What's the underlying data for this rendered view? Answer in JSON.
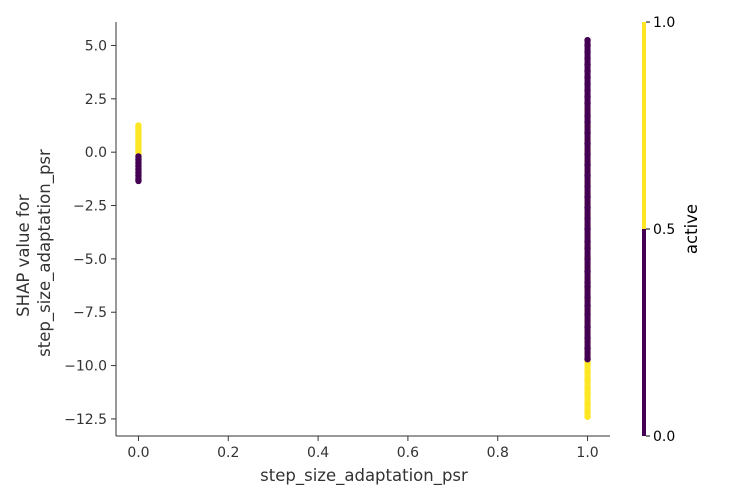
{
  "chart_data": {
    "type": "scatter",
    "title": "",
    "xlabel": "step_size_adaptation_psr",
    "ylabel_lines": [
      "SHAP value for",
      "step_size_adaptation_psr"
    ],
    "xlim": [
      -0.05,
      1.05
    ],
    "ylim": [
      -13.3,
      6.1
    ],
    "x_ticks": [
      0.0,
      0.2,
      0.4,
      0.6,
      0.8,
      1.0
    ],
    "x_tick_labels": [
      "0.0",
      "0.2",
      "0.4",
      "0.6",
      "0.8",
      "1.0"
    ],
    "y_ticks": [
      5.0,
      2.5,
      0.0,
      -2.5,
      -5.0,
      -7.5,
      -10.0,
      -12.5
    ],
    "y_tick_labels": [
      "5.0",
      "2.5",
      "0.0",
      "−2.5",
      "−5.0",
      "−7.5",
      "−10.0",
      "−12.5"
    ],
    "grid": false,
    "colorbar": {
      "label": "active",
      "ticks": [
        0.0,
        0.5,
        1.0
      ],
      "tick_labels": [
        "0.0",
        "0.5",
        "1.0"
      ],
      "split_value": 0.5,
      "color_low": "#440154",
      "color_high": "#fde725"
    },
    "series": [
      {
        "name": "active = 1",
        "color": "#fde725",
        "points": [
          [
            0,
            1.25
          ],
          [
            0,
            1.15
          ],
          [
            0,
            1.05
          ],
          [
            0,
            0.95
          ],
          [
            0,
            0.85
          ],
          [
            0,
            0.75
          ],
          [
            0,
            0.65
          ],
          [
            0,
            0.55
          ],
          [
            0,
            0.45
          ],
          [
            0,
            0.35
          ],
          [
            0,
            0.25
          ],
          [
            0,
            0.15
          ],
          [
            0,
            0.05
          ],
          [
            0,
            -0.05
          ],
          [
            1,
            2.0
          ],
          [
            1,
            1.2
          ],
          [
            1,
            0.6
          ],
          [
            1,
            0.1
          ],
          [
            1,
            -0.4
          ],
          [
            1,
            -0.9
          ],
          [
            1,
            -1.4
          ],
          [
            1,
            -1.9
          ],
          [
            1,
            -2.4
          ],
          [
            1,
            -2.9
          ],
          [
            1,
            -3.4
          ],
          [
            1,
            -3.9
          ],
          [
            1,
            -4.4
          ],
          [
            1,
            -4.9
          ],
          [
            1,
            -5.4
          ],
          [
            1,
            -5.9
          ],
          [
            1,
            -6.4
          ],
          [
            1,
            -6.9
          ],
          [
            1,
            -7.4
          ],
          [
            1,
            -7.9
          ],
          [
            1,
            -8.4
          ],
          [
            1,
            -8.9
          ],
          [
            1,
            -9.4
          ],
          [
            1,
            -9.9
          ],
          [
            1,
            -10.3
          ],
          [
            1,
            -10.7
          ],
          [
            1,
            -11.1
          ],
          [
            1,
            -11.3
          ],
          [
            1,
            -11.8
          ],
          [
            1,
            -12.2
          ],
          [
            1,
            -12.4
          ]
        ]
      },
      {
        "name": "active = 0",
        "color": "#440154",
        "points": [
          [
            0,
            -0.2
          ],
          [
            0,
            -0.35
          ],
          [
            0,
            -0.5
          ],
          [
            0,
            -0.65
          ],
          [
            0,
            -0.8
          ],
          [
            0,
            -0.95
          ],
          [
            0,
            -1.1
          ],
          [
            0,
            -1.25
          ],
          [
            0,
            -1.35
          ],
          [
            1,
            5.25
          ],
          [
            1,
            5.0
          ],
          [
            1,
            4.7
          ],
          [
            1,
            4.4
          ],
          [
            1,
            4.1
          ],
          [
            1,
            3.8
          ],
          [
            1,
            3.5
          ],
          [
            1,
            3.2
          ],
          [
            1,
            2.9
          ],
          [
            1,
            2.6
          ],
          [
            1,
            2.3
          ],
          [
            1,
            1.7
          ],
          [
            1,
            1.4
          ],
          [
            1,
            0.9
          ],
          [
            1,
            0.4
          ],
          [
            1,
            -0.1
          ],
          [
            1,
            -0.6
          ],
          [
            1,
            -1.1
          ],
          [
            1,
            -1.6
          ],
          [
            1,
            -2.1
          ],
          [
            1,
            -2.6
          ],
          [
            1,
            -3.1
          ],
          [
            1,
            -3.6
          ],
          [
            1,
            -4.2
          ],
          [
            1,
            -4.5
          ],
          [
            1,
            -5.0
          ],
          [
            1,
            -5.6
          ],
          [
            1,
            -6.1
          ],
          [
            1,
            -6.3
          ],
          [
            1,
            -6.8
          ],
          [
            1,
            -7.2
          ],
          [
            1,
            -7.6
          ],
          [
            1,
            -8.2
          ],
          [
            1,
            -8.7
          ],
          [
            1,
            -9.2
          ],
          [
            1,
            -9.7
          ]
        ]
      }
    ]
  }
}
